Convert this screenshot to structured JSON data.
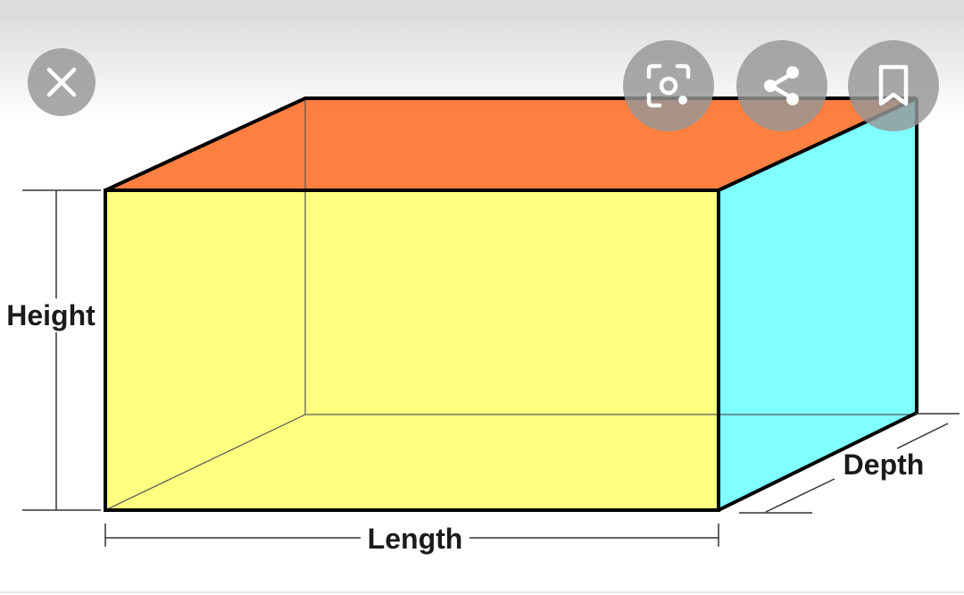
{
  "diagram": {
    "labels": {
      "height": "Height",
      "length": "Length",
      "depth": "Depth"
    },
    "colors": {
      "front_face": "#ffff80",
      "top_face": "#ff8040",
      "side_face": "#80ffff",
      "edges": "#000000"
    }
  },
  "viewer": {
    "buttons": {
      "close": "close-icon",
      "lens": "lens-icon",
      "share": "share-icon",
      "save": "bookmark-icon"
    }
  }
}
